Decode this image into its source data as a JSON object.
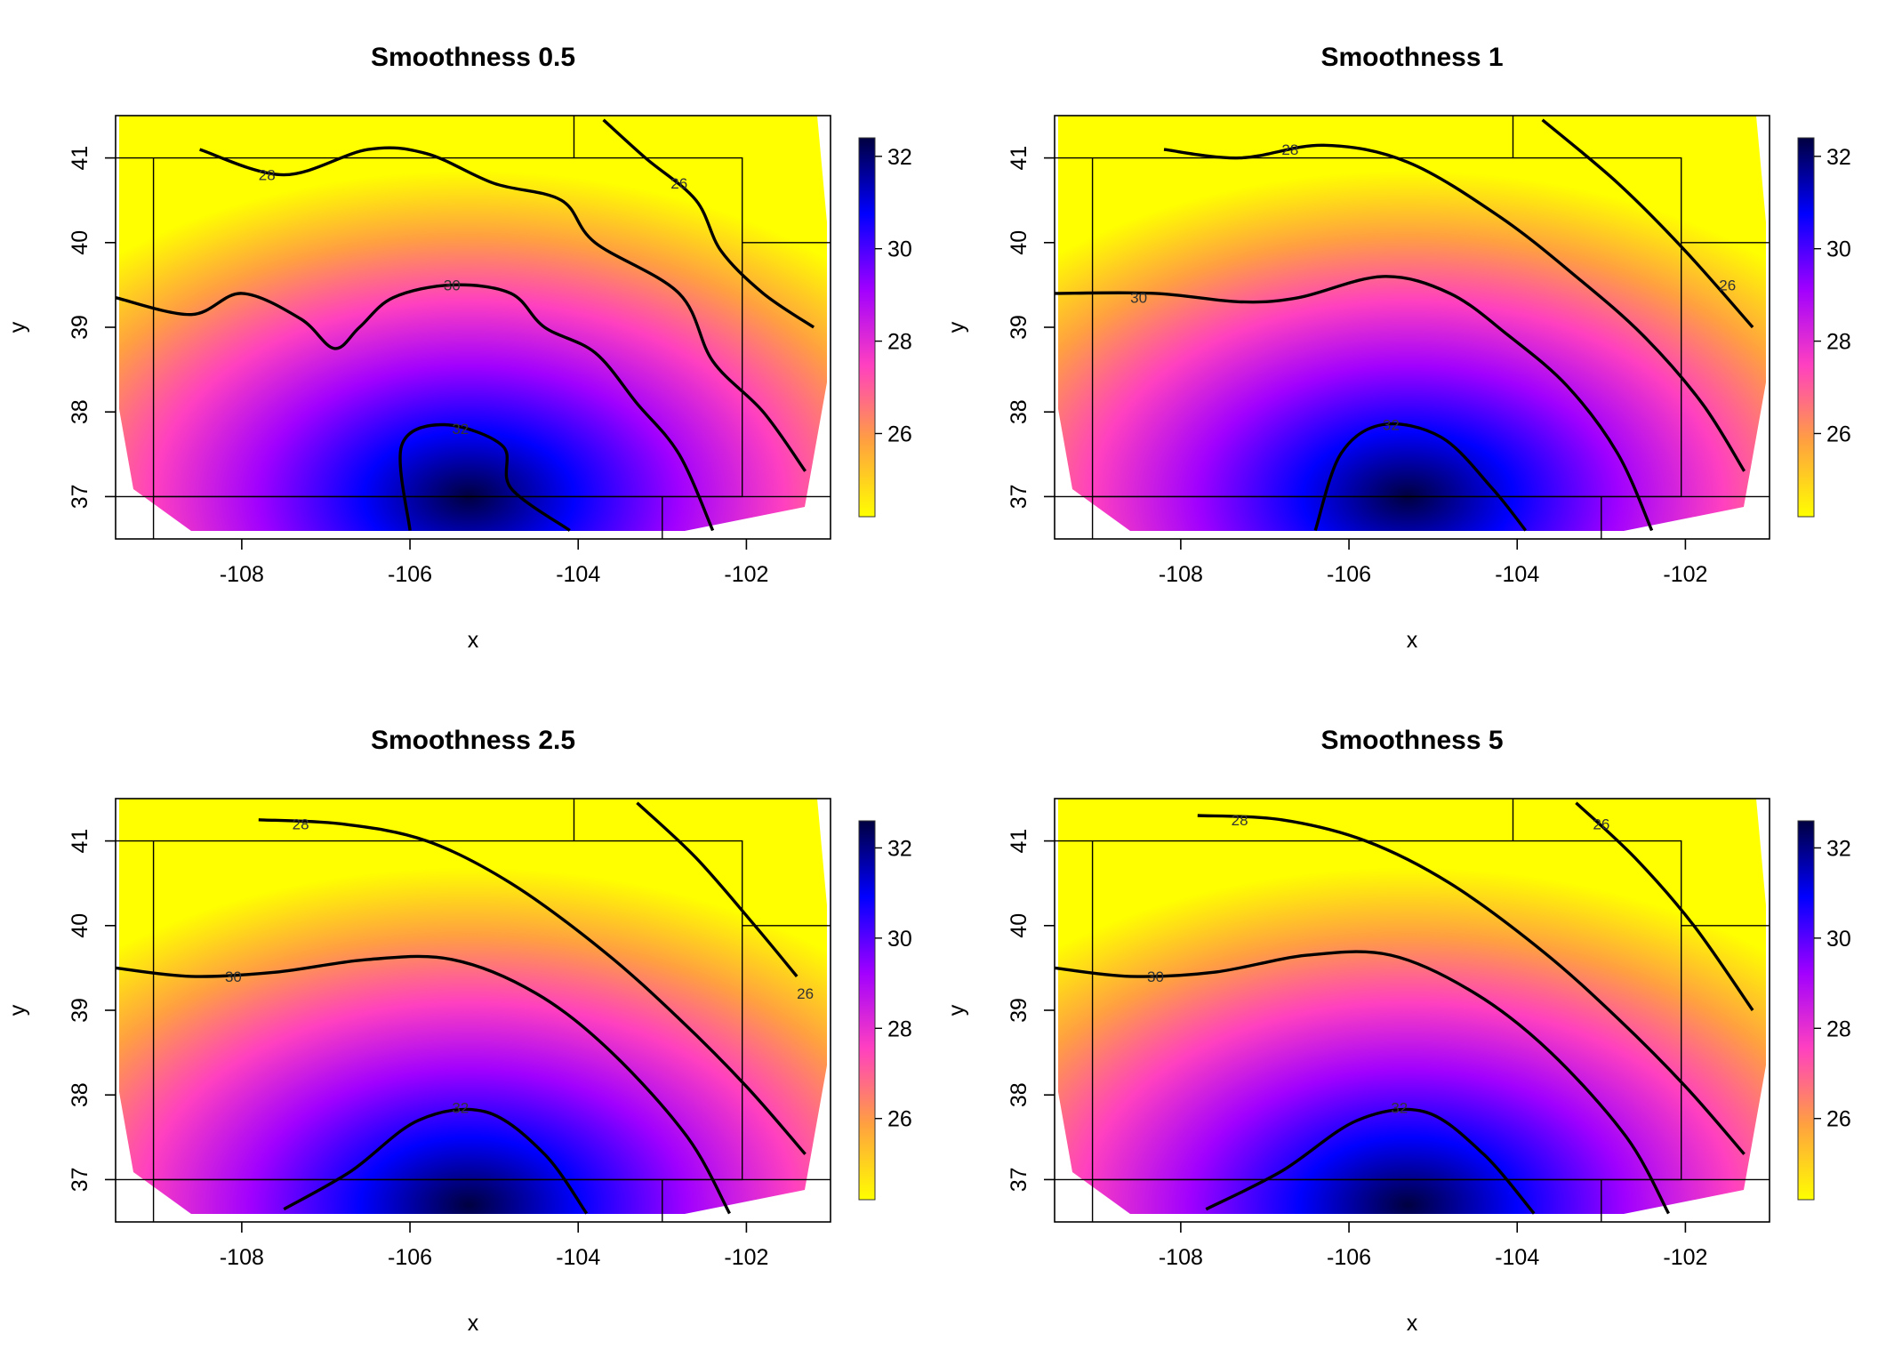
{
  "chart_data": [
    {
      "type": "heatmap",
      "title": "Smoothness 0.5",
      "xlabel": "x",
      "ylabel": "y",
      "xlim": [
        -109.5,
        -101.0
      ],
      "ylim": [
        36.5,
        41.5
      ],
      "x_ticks": [
        "-108",
        "-106",
        "-104",
        "-102"
      ],
      "y_ticks": [
        "37",
        "38",
        "39",
        "40",
        "41"
      ],
      "colorbar": {
        "range": [
          24.2,
          32.4
        ],
        "ticks": [
          "26",
          "28",
          "30",
          "32"
        ],
        "colors": [
          "#ffff00",
          "#ffa040",
          "#ff40c0",
          "#a000ff",
          "#0000ff",
          "#000040"
        ]
      },
      "surface": {
        "peak_x": -105.3,
        "peak_y": 37.0,
        "peak_value": 32.4,
        "max_value": 32.4,
        "min_value": 24.2,
        "ne_x": -101.0,
        "ne_y": 41.5
      },
      "contours": [
        {
          "level": "26",
          "label_pos": [
            -102.8,
            40.7
          ],
          "points": [
            [
              -103.7,
              41.45
            ],
            [
              -103.2,
              41.0
            ],
            [
              -102.6,
              40.5
            ],
            [
              -102.3,
              39.9
            ],
            [
              -101.8,
              39.4
            ],
            [
              -101.2,
              39.0
            ]
          ]
        },
        {
          "level": "28",
          "label_pos": [
            -107.7,
            40.8
          ],
          "points": [
            [
              -108.5,
              41.1
            ],
            [
              -107.5,
              40.8
            ],
            [
              -106.5,
              41.1
            ],
            [
              -105.8,
              41.05
            ],
            [
              -105.0,
              40.7
            ],
            [
              -104.2,
              40.5
            ],
            [
              -103.8,
              40.0
            ],
            [
              -102.8,
              39.4
            ],
            [
              -102.4,
              38.6
            ],
            [
              -101.8,
              38.0
            ],
            [
              -101.3,
              37.3
            ]
          ]
        },
        {
          "level": "30",
          "label_pos": [
            -105.5,
            39.5
          ],
          "points": [
            [
              -109.5,
              39.35
            ],
            [
              -108.6,
              39.15
            ],
            [
              -108.0,
              39.4
            ],
            [
              -107.3,
              39.1
            ],
            [
              -106.9,
              38.75
            ],
            [
              -106.6,
              39.0
            ],
            [
              -106.2,
              39.35
            ],
            [
              -105.5,
              39.5
            ],
            [
              -104.8,
              39.4
            ],
            [
              -104.4,
              39.0
            ],
            [
              -103.8,
              38.7
            ],
            [
              -103.3,
              38.1
            ],
            [
              -102.8,
              37.5
            ],
            [
              -102.4,
              36.6
            ]
          ]
        },
        {
          "level": "32",
          "label_pos": [
            -105.4,
            37.8
          ],
          "points": [
            [
              -106.0,
              36.6
            ],
            [
              -106.1,
              37.6
            ],
            [
              -105.6,
              37.85
            ],
            [
              -104.9,
              37.6
            ],
            [
              -104.8,
              37.1
            ],
            [
              -104.1,
              36.6
            ]
          ]
        }
      ]
    },
    {
      "type": "heatmap",
      "title": "Smoothness 1",
      "xlabel": "x",
      "ylabel": "y",
      "xlim": [
        -109.5,
        -101.0
      ],
      "ylim": [
        36.5,
        41.5
      ],
      "x_ticks": [
        "-108",
        "-106",
        "-104",
        "-102"
      ],
      "y_ticks": [
        "37",
        "38",
        "39",
        "40",
        "41"
      ],
      "colorbar": {
        "range": [
          24.2,
          32.4
        ],
        "ticks": [
          "26",
          "28",
          "30",
          "32"
        ],
        "colors": [
          "#ffff00",
          "#ffa040",
          "#ff40c0",
          "#a000ff",
          "#0000ff",
          "#000040"
        ]
      },
      "surface": {
        "peak_x": -105.3,
        "peak_y": 37.0,
        "peak_value": 32.4,
        "max_value": 32.4,
        "min_value": 24.2,
        "ne_x": -101.0,
        "ne_y": 41.5
      },
      "contours": [
        {
          "level": "26",
          "label_pos": [
            -101.5,
            39.5
          ],
          "points": [
            [
              -103.7,
              41.45
            ],
            [
              -102.8,
              40.7
            ],
            [
              -102.0,
              39.9
            ],
            [
              -101.2,
              39.0
            ]
          ]
        },
        {
          "level": "28",
          "label_pos": [
            -106.7,
            41.1
          ],
          "points": [
            [
              -108.2,
              41.1
            ],
            [
              -107.3,
              41.0
            ],
            [
              -106.3,
              41.15
            ],
            [
              -105.3,
              40.95
            ],
            [
              -104.2,
              40.3
            ],
            [
              -103.3,
              39.6
            ],
            [
              -102.5,
              38.9
            ],
            [
              -101.8,
              38.1
            ],
            [
              -101.3,
              37.3
            ]
          ]
        },
        {
          "level": "30",
          "label_pos": [
            -108.5,
            39.35
          ],
          "points": [
            [
              -109.5,
              39.4
            ],
            [
              -108.3,
              39.4
            ],
            [
              -107.3,
              39.3
            ],
            [
              -106.6,
              39.35
            ],
            [
              -105.6,
              39.6
            ],
            [
              -104.8,
              39.4
            ],
            [
              -104.1,
              38.9
            ],
            [
              -103.4,
              38.3
            ],
            [
              -102.8,
              37.5
            ],
            [
              -102.4,
              36.6
            ]
          ]
        },
        {
          "level": "32",
          "label_pos": [
            -105.5,
            37.85
          ],
          "points": [
            [
              -106.4,
              36.6
            ],
            [
              -106.1,
              37.5
            ],
            [
              -105.6,
              37.85
            ],
            [
              -104.9,
              37.7
            ],
            [
              -104.3,
              37.1
            ],
            [
              -103.9,
              36.6
            ]
          ]
        }
      ]
    },
    {
      "type": "heatmap",
      "title": "Smoothness 2.5",
      "xlabel": "x",
      "ylabel": "y",
      "xlim": [
        -109.5,
        -101.0
      ],
      "ylim": [
        36.5,
        41.5
      ],
      "x_ticks": [
        "-108",
        "-106",
        "-104",
        "-102"
      ],
      "y_ticks": [
        "37",
        "38",
        "39",
        "40",
        "41"
      ],
      "colorbar": {
        "range": [
          24.2,
          32.6
        ],
        "ticks": [
          "26",
          "28",
          "30",
          "32"
        ],
        "colors": [
          "#ffff00",
          "#ffa040",
          "#ff40c0",
          "#a000ff",
          "#0000ff",
          "#000040"
        ]
      },
      "surface": {
        "peak_x": -105.3,
        "peak_y": 36.7,
        "peak_value": 32.6,
        "max_value": 32.6,
        "min_value": 24.2,
        "ne_x": -101.0,
        "ne_y": 41.5
      },
      "contours": [
        {
          "level": "26",
          "label_pos": [
            -101.3,
            39.2
          ],
          "points": [
            [
              -103.3,
              41.45
            ],
            [
              -102.6,
              40.8
            ],
            [
              -101.9,
              40.0
            ],
            [
              -101.4,
              39.4
            ]
          ]
        },
        {
          "level": "28",
          "label_pos": [
            -107.3,
            41.2
          ],
          "points": [
            [
              -107.8,
              41.25
            ],
            [
              -106.8,
              41.2
            ],
            [
              -105.8,
              41.0
            ],
            [
              -104.8,
              40.5
            ],
            [
              -103.7,
              39.7
            ],
            [
              -102.8,
              38.9
            ],
            [
              -102.0,
              38.1
            ],
            [
              -101.3,
              37.3
            ]
          ]
        },
        {
          "level": "30",
          "label_pos": [
            -108.1,
            39.4
          ],
          "points": [
            [
              -109.5,
              39.5
            ],
            [
              -108.6,
              39.4
            ],
            [
              -107.6,
              39.45
            ],
            [
              -106.5,
              39.6
            ],
            [
              -105.5,
              39.6
            ],
            [
              -104.5,
              39.2
            ],
            [
              -103.6,
              38.5
            ],
            [
              -102.7,
              37.5
            ],
            [
              -102.2,
              36.6
            ]
          ]
        },
        {
          "level": "32",
          "label_pos": [
            -105.4,
            37.85
          ],
          "points": [
            [
              -107.5,
              36.65
            ],
            [
              -106.7,
              37.1
            ],
            [
              -105.9,
              37.7
            ],
            [
              -105.1,
              37.8
            ],
            [
              -104.4,
              37.3
            ],
            [
              -103.9,
              36.6
            ]
          ]
        }
      ]
    },
    {
      "type": "heatmap",
      "title": "Smoothness 5",
      "xlabel": "x",
      "ylabel": "y",
      "xlim": [
        -109.5,
        -101.0
      ],
      "ylim": [
        36.5,
        41.5
      ],
      "x_ticks": [
        "-108",
        "-106",
        "-104",
        "-102"
      ],
      "y_ticks": [
        "37",
        "38",
        "39",
        "40",
        "41"
      ],
      "colorbar": {
        "range": [
          24.2,
          32.6
        ],
        "ticks": [
          "26",
          "28",
          "30",
          "32"
        ],
        "colors": [
          "#ffff00",
          "#ffa040",
          "#ff40c0",
          "#a000ff",
          "#0000ff",
          "#000040"
        ]
      },
      "surface": {
        "peak_x": -105.3,
        "peak_y": 36.7,
        "peak_value": 32.6,
        "max_value": 32.6,
        "min_value": 24.2,
        "ne_x": -101.0,
        "ne_y": 41.5
      },
      "contours": [
        {
          "level": "26",
          "label_pos": [
            -103.0,
            41.2
          ],
          "points": [
            [
              -103.3,
              41.45
            ],
            [
              -102.6,
              40.8
            ],
            [
              -101.9,
              40.0
            ],
            [
              -101.2,
              39.0
            ]
          ]
        },
        {
          "level": "28",
          "label_pos": [
            -107.3,
            41.25
          ],
          "points": [
            [
              -107.8,
              41.3
            ],
            [
              -106.8,
              41.25
            ],
            [
              -105.8,
              41.0
            ],
            [
              -104.8,
              40.5
            ],
            [
              -103.7,
              39.7
            ],
            [
              -102.8,
              38.9
            ],
            [
              -102.0,
              38.1
            ],
            [
              -101.3,
              37.3
            ]
          ]
        },
        {
          "level": "30",
          "label_pos": [
            -108.3,
            39.4
          ],
          "points": [
            [
              -109.5,
              39.5
            ],
            [
              -108.6,
              39.4
            ],
            [
              -107.6,
              39.45
            ],
            [
              -106.5,
              39.65
            ],
            [
              -105.5,
              39.65
            ],
            [
              -104.5,
              39.2
            ],
            [
              -103.6,
              38.5
            ],
            [
              -102.7,
              37.5
            ],
            [
              -102.2,
              36.6
            ]
          ]
        },
        {
          "level": "32",
          "label_pos": [
            -105.4,
            37.85
          ],
          "points": [
            [
              -107.7,
              36.65
            ],
            [
              -106.8,
              37.1
            ],
            [
              -105.9,
              37.7
            ],
            [
              -105.1,
              37.8
            ],
            [
              -104.4,
              37.3
            ],
            [
              -103.8,
              36.6
            ]
          ]
        }
      ]
    }
  ]
}
